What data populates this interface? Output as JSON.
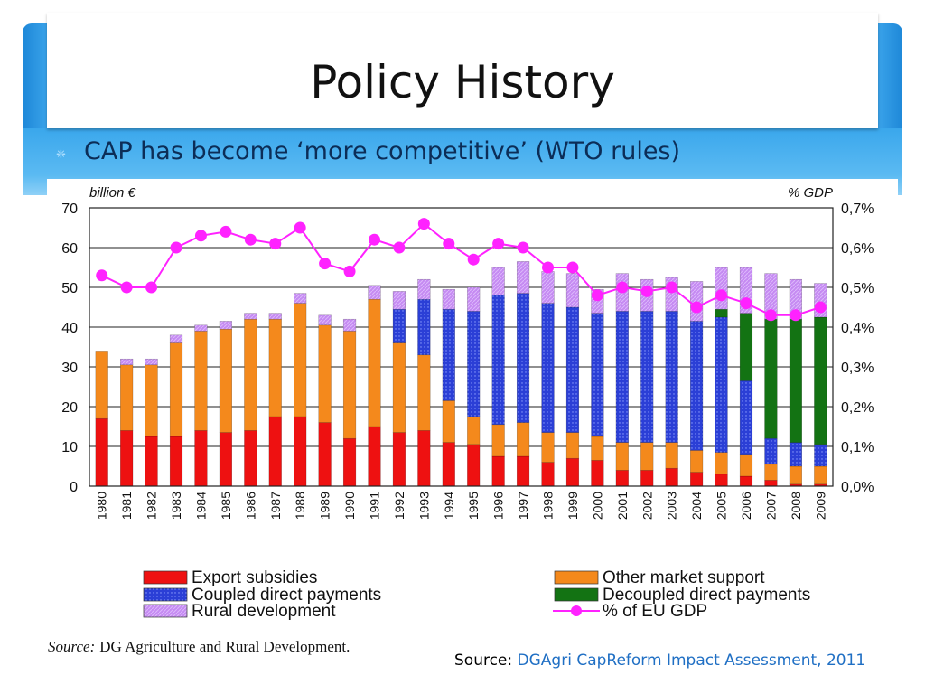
{
  "slide": {
    "title": "Policy History",
    "bullet": "CAP has become ‘more competitive’ (WTO rules)",
    "source_label": "Source:",
    "source_link": "DGAgri CapReform Impact Assessment, 2011"
  },
  "colors": {
    "band": "#2d98e4",
    "bullet_text": "#0c2d57",
    "export_subsidies": "#ee1111",
    "other_market_support": "#f4891c",
    "coupled_direct_payments": "#2b3fd6",
    "decoupled_direct_payments": "#137313",
    "rural_development": "#c58af2",
    "gdp_line": "#ff22ff"
  },
  "chart_data": {
    "type": "bar",
    "stacked": true,
    "categories": [
      "1980",
      "1981",
      "1982",
      "1983",
      "1984",
      "1985",
      "1986",
      "1987",
      "1988",
      "1989",
      "1990",
      "1991",
      "1992",
      "1993",
      "1994",
      "1995",
      "1996",
      "1997",
      "1998",
      "1999",
      "2000",
      "2001",
      "2002",
      "2003",
      "2004",
      "2005",
      "2006",
      "2007",
      "2008",
      "2009"
    ],
    "y_axis_left": {
      "label": "billion €",
      "ylim": [
        0,
        70
      ],
      "ticks": [
        "0",
        "10",
        "20",
        "30",
        "40",
        "50",
        "60",
        "70"
      ]
    },
    "y_axis_right": {
      "label": "% GDP",
      "ylim": [
        0,
        0.7
      ],
      "ticks": [
        "0,0%",
        "0,1%",
        "0,2%",
        "0,3%",
        "0,4%",
        "0,5%",
        "0,6%",
        "0,7%"
      ]
    },
    "series": [
      {
        "name": "Export subsidies",
        "key": "export_subsidies",
        "values": [
          17,
          14,
          12.5,
          12.5,
          14,
          13.5,
          14,
          17.5,
          17.5,
          16,
          12,
          15,
          13.5,
          14,
          11,
          10.5,
          7.5,
          7.5,
          6,
          7,
          6.5,
          4,
          4,
          4.5,
          3.5,
          3,
          2.5,
          1.5,
          0.5,
          0.5
        ]
      },
      {
        "name": "Other market support",
        "key": "other_market_support",
        "values": [
          17,
          16.5,
          18,
          23.5,
          25,
          26,
          28,
          24.5,
          28.5,
          24.5,
          27,
          32,
          22.5,
          19,
          10.5,
          7,
          8,
          8.5,
          7.5,
          6.5,
          6,
          7,
          7,
          6.5,
          5.5,
          5.5,
          5.5,
          4,
          4.5,
          4.5
        ]
      },
      {
        "name": "Coupled direct payments",
        "key": "coupled_direct_payments",
        "values": [
          0,
          0,
          0,
          0,
          0,
          0,
          0,
          0,
          0,
          0,
          0,
          0,
          8.5,
          14,
          23,
          26.5,
          32.5,
          32.5,
          32.5,
          31.5,
          31,
          33,
          33,
          33,
          32.5,
          34,
          18.5,
          6.5,
          6,
          5.5
        ]
      },
      {
        "name": "Decoupled direct payments",
        "key": "decoupled_direct_payments",
        "values": [
          0,
          0,
          0,
          0,
          0,
          0,
          0,
          0,
          0,
          0,
          0,
          0,
          0,
          0,
          0,
          0,
          0,
          0,
          0,
          0,
          0,
          0,
          0,
          0,
          0,
          2,
          17,
          30,
          31,
          32
        ]
      },
      {
        "name": "Rural development",
        "key": "rural_development",
        "values": [
          0,
          1.5,
          1.5,
          2,
          1.5,
          2,
          1.5,
          1.5,
          2.5,
          2.5,
          3,
          3.5,
          4.5,
          5,
          5,
          6,
          7,
          8,
          8,
          8.5,
          6,
          9.5,
          8,
          8.5,
          10,
          10.5,
          11.5,
          11.5,
          10,
          8.5
        ]
      }
    ],
    "line_series": {
      "name": "% of EU GDP",
      "axis": "right",
      "values": [
        0.53,
        0.5,
        0.5,
        0.6,
        0.63,
        0.64,
        0.62,
        0.61,
        0.65,
        0.56,
        0.54,
        0.62,
        0.6,
        0.66,
        0.61,
        0.57,
        0.61,
        0.6,
        0.55,
        0.55,
        0.48,
        0.5,
        0.49,
        0.5,
        0.45,
        0.48,
        0.46,
        0.43,
        0.43,
        0.45
      ]
    },
    "legend": {
      "placement": "bottom",
      "items": [
        {
          "label": "Export subsidies",
          "key": "export_subsidies"
        },
        {
          "label": "Other market support",
          "key": "other_market_support"
        },
        {
          "label": "Coupled direct payments",
          "key": "coupled_direct_payments"
        },
        {
          "label": "Decoupled direct payments",
          "key": "decoupled_direct_payments"
        },
        {
          "label": "Rural development",
          "key": "rural_development"
        },
        {
          "label": "% of EU GDP",
          "key": "gdp_line"
        }
      ]
    },
    "grid": true,
    "source_note_label": "Source:",
    "source_note_text": "DG Agriculture and Rural Development."
  }
}
